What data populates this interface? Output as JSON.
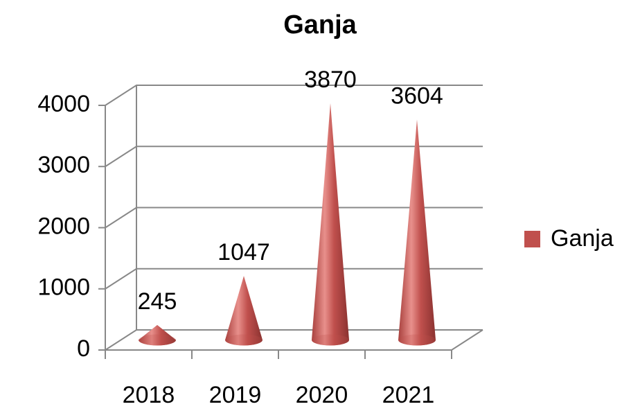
{
  "chart_data": {
    "type": "cone",
    "title": "Ganja",
    "categories": [
      "2018",
      "2019",
      "2020",
      "2021"
    ],
    "series": [
      {
        "name": "Ganja",
        "color": "#c0504d",
        "values": [
          245,
          1047,
          3870,
          3604
        ]
      }
    ],
    "ylim": [
      0,
      4000
    ],
    "yticks": [
      0,
      1000,
      2000,
      3000,
      4000
    ],
    "grid": true,
    "legend": "right"
  }
}
